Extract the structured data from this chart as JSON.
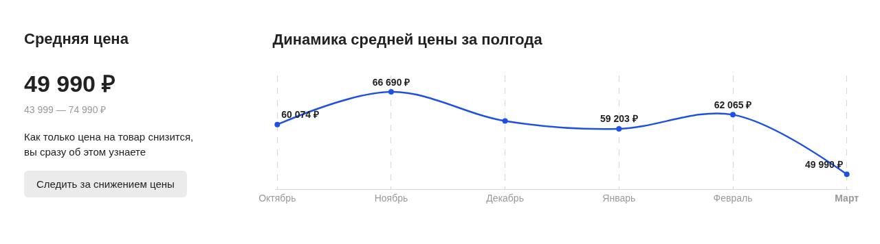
{
  "chart_data": [
    {
      "type": "other",
      "title": "Средняя цена",
      "subtitle": "49 990 ₽",
      "annotations": [
        "43 999 — 74 990 ₽",
        "Как только цена на товар снизится, вы сразу об этом узнаете",
        "Следить за снижением цены"
      ]
    },
    {
      "type": "line",
      "title": "Динамика средней цены за полгода",
      "categories": [
        "Октябрь",
        "Ноябрь",
        "Декабрь",
        "Январь",
        "Февраль",
        "Март"
      ],
      "values": [
        60074,
        66690,
        60800,
        59203,
        62065,
        49990
      ],
      "value_labels": [
        "60 074 ₽",
        "66 690 ₽",
        null,
        "59 203 ₽",
        "62 065 ₽",
        "49 990 ₽"
      ],
      "color": "#1f50e6",
      "marker": "circle",
      "line_style": "solid",
      "grid": "x"
    }
  ]
}
